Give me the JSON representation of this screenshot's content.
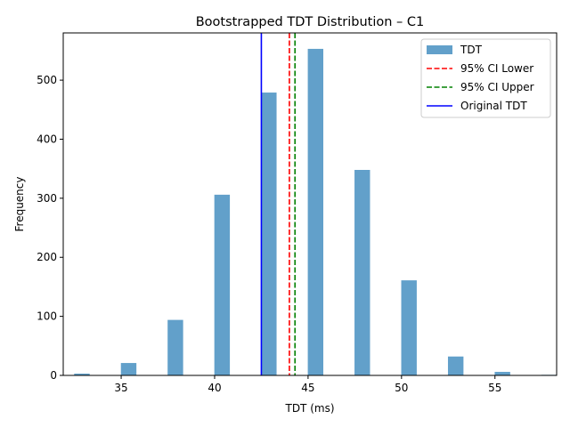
{
  "chart_data": {
    "type": "bar",
    "title": "Bootstrapped TDT Distribution – C1",
    "xlabel": "TDT (ms)",
    "ylabel": "Frequency",
    "xlim": [
      31.9,
      58.3
    ],
    "ylim": [
      0,
      580
    ],
    "xticks": [
      35,
      40,
      45,
      50,
      55
    ],
    "yticks": [
      0,
      100,
      200,
      300,
      400,
      500
    ],
    "bin_width": 0.83,
    "series": [
      {
        "name": "TDT",
        "color": "#1f77b4",
        "alpha": 0.7,
        "bins": [
          {
            "x": 32.9,
            "value": 3
          },
          {
            "x": 35.4,
            "value": 21
          },
          {
            "x": 37.9,
            "value": 94
          },
          {
            "x": 40.4,
            "value": 306
          },
          {
            "x": 42.9,
            "value": 479
          },
          {
            "x": 45.4,
            "value": 553
          },
          {
            "x": 47.9,
            "value": 348
          },
          {
            "x": 50.4,
            "value": 161
          },
          {
            "x": 52.9,
            "value": 32
          },
          {
            "x": 55.4,
            "value": 6
          },
          {
            "x": 57.9,
            "value": 1
          }
        ]
      }
    ],
    "reference_lines": [
      {
        "name": "95% CI Lower",
        "x": 44.0,
        "color": "#ff0000",
        "style": "dashed"
      },
      {
        "name": "95% CI Upper",
        "x": 44.3,
        "color": "#008000",
        "style": "dashed"
      },
      {
        "name": "Original TDT",
        "x": 42.5,
        "color": "#0000ff",
        "style": "solid"
      }
    ],
    "legend": {
      "position": "top-right",
      "entries": [
        {
          "label": "TDT",
          "kind": "patch",
          "color": "#1f77b4"
        },
        {
          "label": "95% CI Lower",
          "kind": "dashed",
          "color": "#ff0000"
        },
        {
          "label": "95% CI Upper",
          "kind": "dashed",
          "color": "#008000"
        },
        {
          "label": "Original TDT",
          "kind": "solid",
          "color": "#0000ff"
        }
      ]
    },
    "grid": false
  }
}
